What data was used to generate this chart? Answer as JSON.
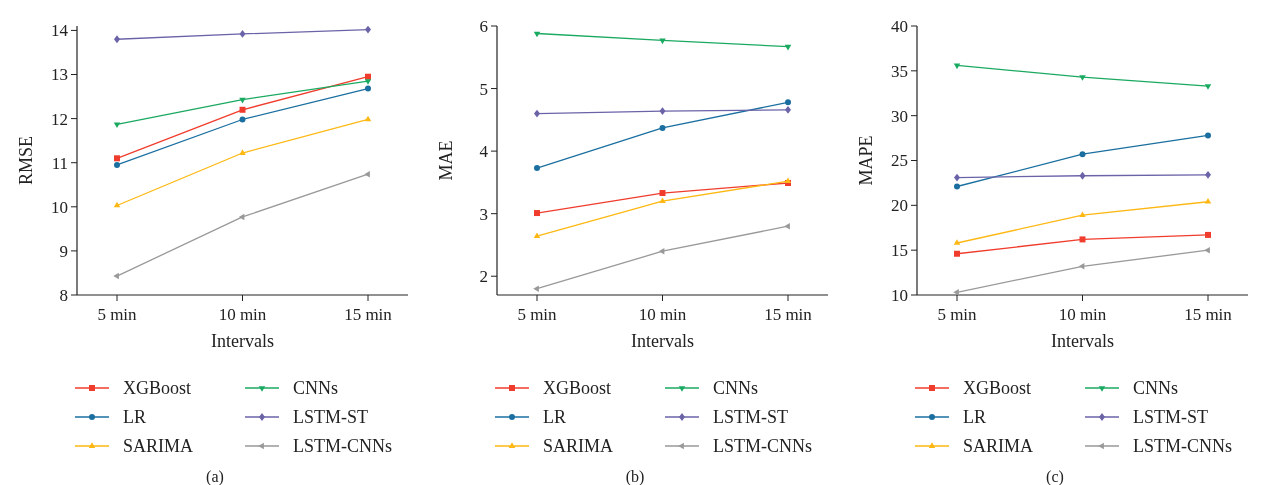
{
  "chart_data": [
    {
      "type": "line",
      "xlabel": "Intervals",
      "ylabel": "RMSE",
      "categories": [
        "5 min",
        "10 min",
        "15 min"
      ],
      "ylim": [
        8,
        14.1
      ],
      "yticks": [
        8,
        9,
        10,
        11,
        12,
        13,
        14
      ],
      "legend": "bottom",
      "grid": false,
      "annotations": [
        "(a)"
      ],
      "series": [
        {
          "name": "XGBoost",
          "color": "#f03c2c",
          "marker": "square",
          "values": [
            11.1,
            12.2,
            12.95
          ]
        },
        {
          "name": "CNNs",
          "color": "#1aa960",
          "marker": "triangle-down",
          "values": [
            11.87,
            12.43,
            12.85
          ]
        },
        {
          "name": "LR",
          "color": "#1a6fa0",
          "marker": "circle",
          "values": [
            10.95,
            11.98,
            12.68
          ]
        },
        {
          "name": "LSTM-ST",
          "color": "#6a63a8",
          "marker": "diamond",
          "values": [
            13.8,
            13.92,
            14.02
          ]
        },
        {
          "name": "SARIMA",
          "color": "#fdb813",
          "marker": "triangle",
          "values": [
            10.03,
            11.22,
            11.98
          ]
        },
        {
          "name": "LSTM-CNNs",
          "color": "#999999",
          "marker": "triangle-left",
          "values": [
            8.43,
            9.77,
            10.74
          ]
        }
      ]
    },
    {
      "type": "line",
      "xlabel": "Intervals",
      "ylabel": "MAE",
      "categories": [
        "5 min",
        "10 min",
        "15 min"
      ],
      "ylim": [
        1.7,
        6
      ],
      "yticks": [
        2,
        3,
        4,
        5,
        6
      ],
      "legend": "bottom",
      "grid": false,
      "annotations": [
        "(b)"
      ],
      "series": [
        {
          "name": "XGBoost",
          "color": "#f03c2c",
          "marker": "square",
          "values": [
            3.01,
            3.33,
            3.49
          ]
        },
        {
          "name": "CNNs",
          "color": "#1aa960",
          "marker": "triangle-down",
          "values": [
            5.88,
            5.77,
            5.67
          ]
        },
        {
          "name": "LR",
          "color": "#1a6fa0",
          "marker": "circle",
          "values": [
            3.73,
            4.37,
            4.78
          ]
        },
        {
          "name": "LSTM-ST",
          "color": "#6a63a8",
          "marker": "diamond",
          "values": [
            4.6,
            4.64,
            4.66
          ]
        },
        {
          "name": "SARIMA",
          "color": "#fdb813",
          "marker": "triangle",
          "values": [
            2.64,
            3.2,
            3.52
          ]
        },
        {
          "name": "LSTM-CNNs",
          "color": "#999999",
          "marker": "triangle-left",
          "values": [
            1.8,
            2.4,
            2.8
          ]
        }
      ]
    },
    {
      "type": "line",
      "xlabel": "Intervals",
      "ylabel": "MAPE",
      "categories": [
        "5 min",
        "10 min",
        "15 min"
      ],
      "ylim": [
        10,
        40
      ],
      "yticks": [
        10,
        15,
        20,
        25,
        30,
        35,
        40
      ],
      "legend": "bottom",
      "grid": false,
      "annotations": [
        "(c)"
      ],
      "series": [
        {
          "name": "XGBoost",
          "color": "#f03c2c",
          "marker": "square",
          "values": [
            14.6,
            16.2,
            16.7
          ]
        },
        {
          "name": "CNNs",
          "color": "#1aa960",
          "marker": "triangle-down",
          "values": [
            35.6,
            34.3,
            33.3
          ]
        },
        {
          "name": "LR",
          "color": "#1a6fa0",
          "marker": "circle",
          "values": [
            22.1,
            25.7,
            27.8
          ]
        },
        {
          "name": "LSTM-ST",
          "color": "#6a63a8",
          "marker": "diamond",
          "values": [
            23.1,
            23.3,
            23.4
          ]
        },
        {
          "name": "SARIMA",
          "color": "#fdb813",
          "marker": "triangle",
          "values": [
            15.8,
            18.9,
            20.4
          ]
        },
        {
          "name": "LSTM-CNNs",
          "color": "#999999",
          "marker": "triangle-left",
          "values": [
            10.3,
            13.2,
            15.0
          ]
        }
      ]
    }
  ]
}
